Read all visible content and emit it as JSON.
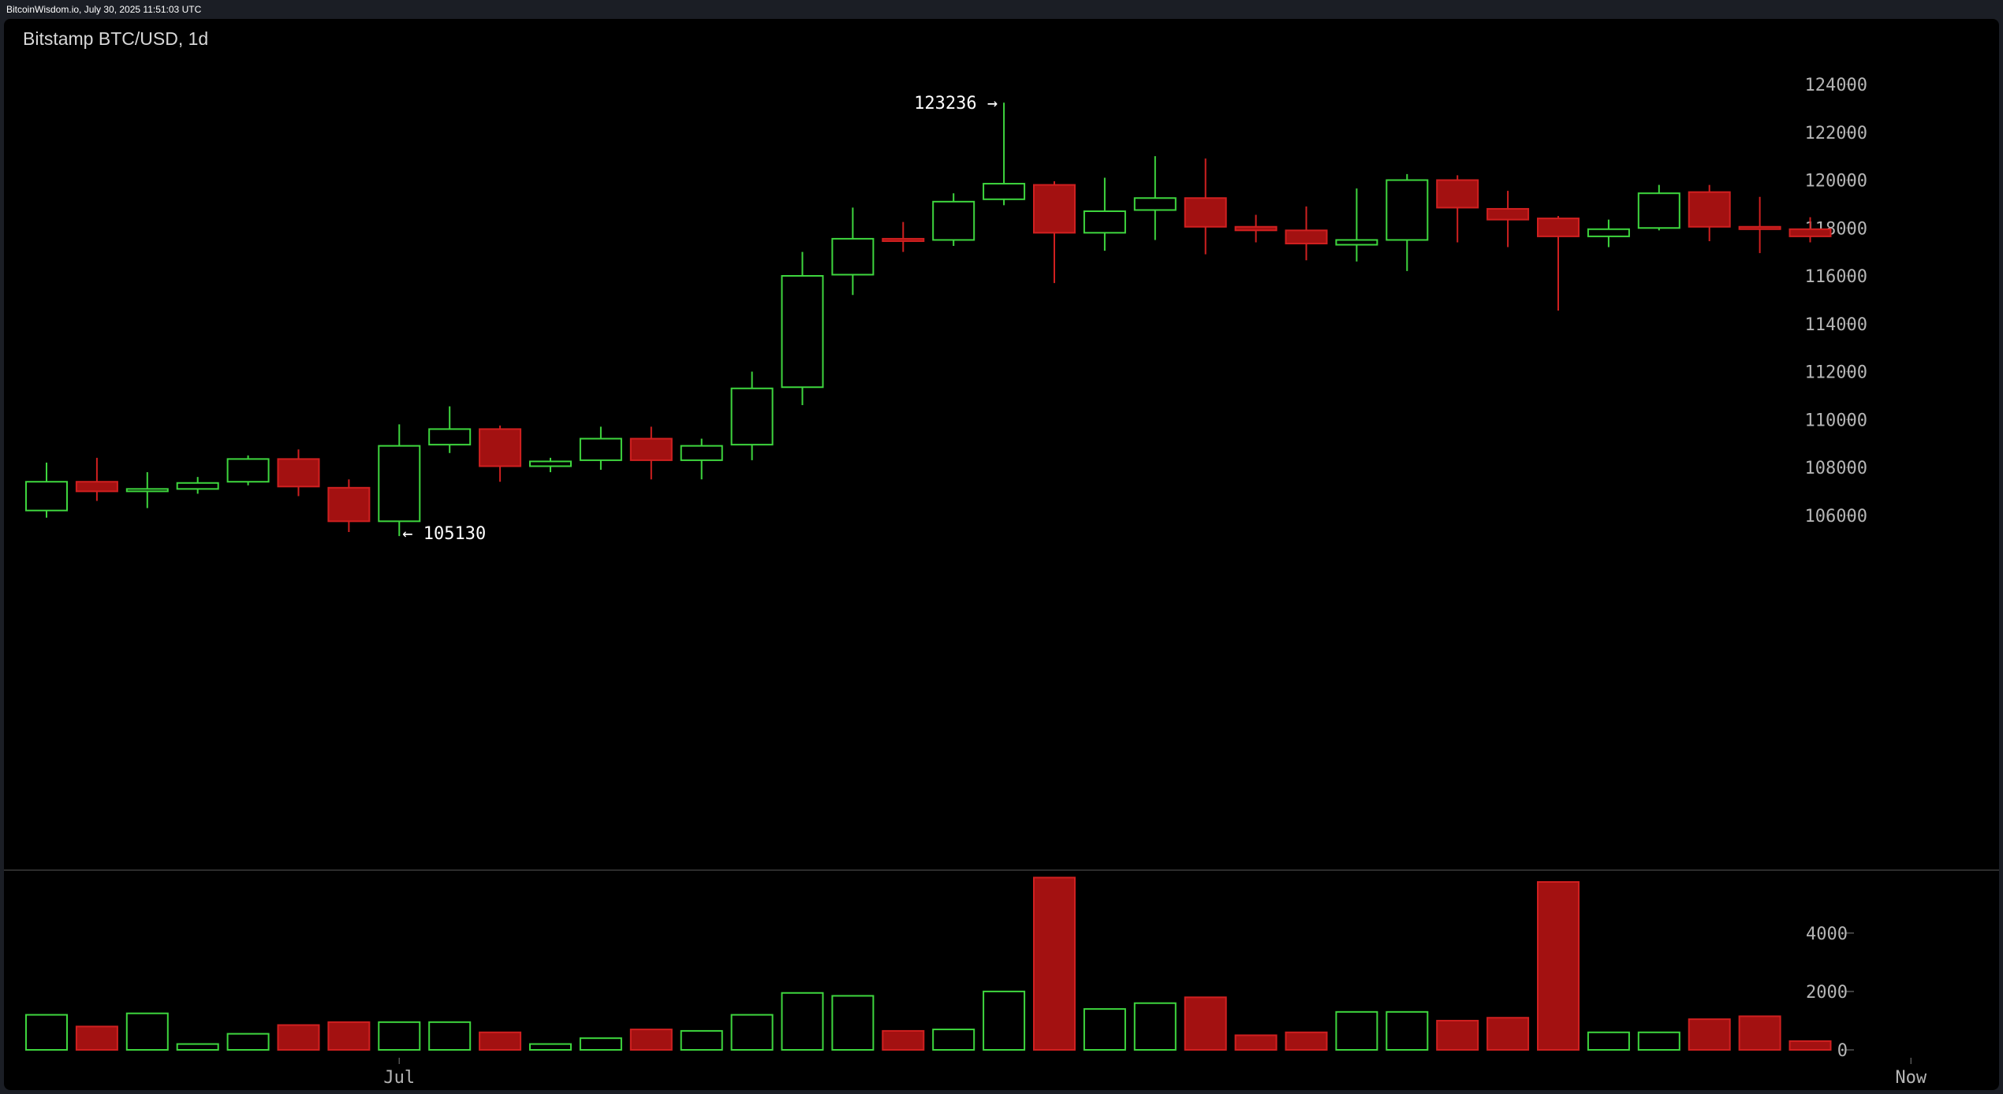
{
  "header": {
    "source": "BitcoinWisdom.io, July 30, 2025 11:51:03 UTC"
  },
  "colors": {
    "up": "#3ed63e",
    "down": "#a31111",
    "down_border": "#d02020",
    "background": "#000000",
    "frame": "#1b1e25"
  },
  "chart_data": {
    "type": "candlestick",
    "title": "Bitstamp BTC/USD, 1d",
    "price_axis": {
      "ticks": [
        106000,
        108000,
        110000,
        112000,
        114000,
        116000,
        118000,
        120000,
        122000,
        124000
      ],
      "range": [
        104000,
        125000
      ]
    },
    "volume_axis": {
      "ticks": [
        0,
        2000,
        4000
      ],
      "range": [
        0,
        5900
      ]
    },
    "x_labels": [
      {
        "label": "Jul",
        "index": 7
      },
      {
        "label": "Now",
        "index": 37
      }
    ],
    "annotations": [
      {
        "text": "123236 →",
        "value": 123236,
        "index": 19,
        "side": "left"
      },
      {
        "text": "← 105130",
        "value": 105130,
        "index": 7,
        "side": "right"
      }
    ],
    "candles": [
      {
        "open": 106200,
        "high": 108200,
        "low": 105900,
        "close": 107400,
        "volume": 1200
      },
      {
        "open": 107400,
        "high": 108400,
        "low": 106600,
        "close": 107000,
        "volume": 800
      },
      {
        "open": 107000,
        "high": 107800,
        "low": 106300,
        "close": 107100,
        "volume": 1250
      },
      {
        "open": 107100,
        "high": 107600,
        "low": 106900,
        "close": 107350,
        "volume": 200
      },
      {
        "open": 107400,
        "high": 108500,
        "low": 107250,
        "close": 108350,
        "volume": 550
      },
      {
        "open": 108350,
        "high": 108750,
        "low": 106800,
        "close": 107200,
        "volume": 850
      },
      {
        "open": 107150,
        "high": 107500,
        "low": 105300,
        "close": 105750,
        "volume": 950
      },
      {
        "open": 105750,
        "high": 109800,
        "low": 105130,
        "close": 108900,
        "volume": 950
      },
      {
        "open": 108950,
        "high": 110550,
        "low": 108600,
        "close": 109600,
        "volume": 950
      },
      {
        "open": 109600,
        "high": 109750,
        "low": 107400,
        "close": 108050,
        "volume": 600
      },
      {
        "open": 108050,
        "high": 108400,
        "low": 107800,
        "close": 108250,
        "volume": 200
      },
      {
        "open": 108300,
        "high": 109700,
        "low": 107900,
        "close": 109200,
        "volume": 400
      },
      {
        "open": 109200,
        "high": 109700,
        "low": 107500,
        "close": 108300,
        "volume": 700
      },
      {
        "open": 108300,
        "high": 109200,
        "low": 107500,
        "close": 108900,
        "volume": 650
      },
      {
        "open": 108950,
        "high": 112000,
        "low": 108300,
        "close": 111300,
        "volume": 1200
      },
      {
        "open": 111350,
        "high": 117000,
        "low": 110600,
        "close": 116000,
        "volume": 1950
      },
      {
        "open": 116050,
        "high": 118850,
        "low": 115200,
        "close": 117550,
        "volume": 1850
      },
      {
        "open": 117550,
        "high": 118250,
        "low": 117000,
        "close": 117450,
        "volume": 650
      },
      {
        "open": 117500,
        "high": 119450,
        "low": 117250,
        "close": 119100,
        "volume": 700
      },
      {
        "open": 119200,
        "high": 123236,
        "low": 118950,
        "close": 119850,
        "volume": 2000
      },
      {
        "open": 119800,
        "high": 119950,
        "low": 115700,
        "close": 117800,
        "volume": 5900
      },
      {
        "open": 117800,
        "high": 120100,
        "low": 117050,
        "close": 118700,
        "volume": 1400
      },
      {
        "open": 118750,
        "high": 121000,
        "low": 117500,
        "close": 119250,
        "volume": 1600
      },
      {
        "open": 119250,
        "high": 120900,
        "low": 116900,
        "close": 118050,
        "volume": 1800
      },
      {
        "open": 118050,
        "high": 118550,
        "low": 117400,
        "close": 117900,
        "volume": 500
      },
      {
        "open": 117900,
        "high": 118900,
        "low": 116650,
        "close": 117350,
        "volume": 600
      },
      {
        "open": 117300,
        "high": 119650,
        "low": 116600,
        "close": 117500,
        "volume": 1300
      },
      {
        "open": 117500,
        "high": 120250,
        "low": 116200,
        "close": 120000,
        "volume": 1300
      },
      {
        "open": 120000,
        "high": 120200,
        "low": 117400,
        "close": 118850,
        "volume": 1000
      },
      {
        "open": 118800,
        "high": 119550,
        "low": 117200,
        "close": 118350,
        "volume": 1100
      },
      {
        "open": 118400,
        "high": 118500,
        "low": 114550,
        "close": 117650,
        "volume": 5750
      },
      {
        "open": 117650,
        "high": 118350,
        "low": 117200,
        "close": 117950,
        "volume": 600
      },
      {
        "open": 118000,
        "high": 119800,
        "low": 117900,
        "close": 119450,
        "volume": 600
      },
      {
        "open": 119500,
        "high": 119800,
        "low": 117450,
        "close": 118050,
        "volume": 1050
      },
      {
        "open": 118050,
        "high": 119300,
        "low": 116950,
        "close": 117950,
        "volume": 1150
      },
      {
        "open": 117950,
        "high": 118450,
        "low": 117400,
        "close": 117650,
        "volume": 300
      }
    ]
  }
}
